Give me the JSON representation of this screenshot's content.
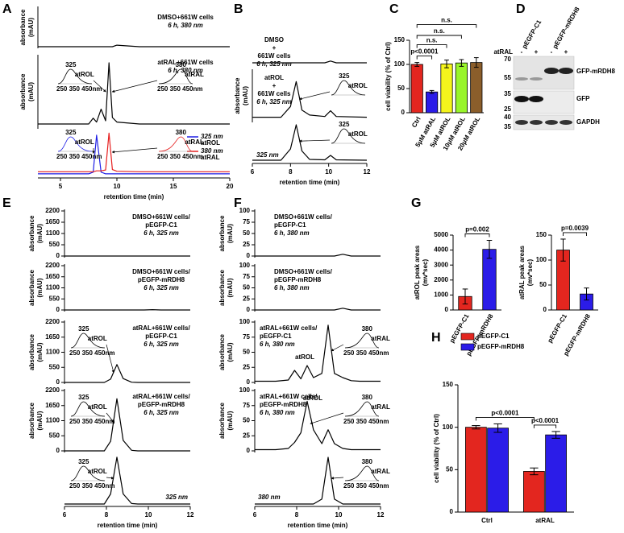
{
  "panels": [
    "A",
    "B",
    "C",
    "D",
    "E",
    "F",
    "G",
    "H"
  ],
  "chart_data": [
    {
      "type": "line",
      "y_label": [
        "absorbance",
        "(mAU)"
      ],
      "labels": [
        "DMSO+661W cells"
      ],
      "method": "6 h, 380 nm",
      "x": [
        3,
        5,
        7.5,
        7.9,
        8.2,
        8.6,
        9,
        9.3,
        9.6,
        10,
        12,
        15,
        20
      ],
      "series": [
        {
          "color": "#000000",
          "values": [
            0,
            0,
            0,
            0,
            0,
            0,
            0,
            0,
            0,
            4,
            0,
            0,
            0
          ]
        }
      ],
      "xlim": [
        3,
        20
      ],
      "ylim": [
        0,
        100
      ]
    },
    {
      "type": "line",
      "y_label": [
        "absorbance",
        "(mAU)"
      ],
      "labels": [
        "atRAL+661W cells"
      ],
      "method": "6 h, 380 nm",
      "insets": [
        {
          "peak": "325",
          "compound": "atROL",
          "axis": "250 350 450nm"
        },
        {
          "peak": "380",
          "compound": "atRAL",
          "axis": "250 350 450nm"
        }
      ],
      "x": [
        3,
        5,
        7.5,
        7.9,
        8.2,
        8.6,
        9,
        9.3,
        9.6,
        10,
        12,
        15,
        20
      ],
      "series": [
        {
          "color": "#000000",
          "values": [
            5,
            5,
            5,
            14,
            8,
            28,
            10,
            100,
            15,
            8,
            5,
            5,
            5
          ]
        }
      ],
      "xlim": [
        3,
        20
      ],
      "ylim": [
        0,
        110
      ]
    },
    {
      "type": "line",
      "insets": [
        {
          "peak": "325",
          "compound": "atROL",
          "axis": "250 350 450nm",
          "color": "#1f1fe6"
        },
        {
          "peak": "380",
          "compound": "atRAL",
          "axis": "250 350 450nm",
          "color": "#e61f1f"
        }
      ],
      "x": [
        3,
        5,
        7.5,
        7.9,
        8.2,
        8.6,
        9,
        9.3,
        9.6,
        10,
        12,
        15,
        20
      ],
      "series": [
        {
          "name": "325 nm",
          "note": "atROL",
          "color": "#1f1fe6",
          "values": [
            4,
            4,
            4,
            8,
            95,
            8,
            4,
            4,
            4,
            4,
            4,
            4,
            4
          ]
        },
        {
          "name": "380 nm",
          "note": "atRAL",
          "color": "#e61f1f",
          "values": [
            9,
            9,
            9,
            9,
            11,
            11,
            13,
            100,
            14,
            10,
            9,
            9,
            9
          ]
        }
      ],
      "xlim": [
        3,
        20
      ],
      "ylim": [
        0,
        110
      ],
      "xticks": [
        5,
        10,
        15,
        20
      ],
      "x_label": "retention time (min)"
    },
    {
      "type": "line",
      "labels": [
        "DMSO",
        "+",
        "661W cells"
      ],
      "method": "6 h, 325 nm",
      "x": [
        6,
        7.5,
        8,
        8.3,
        8.6,
        9,
        9.8,
        10.1,
        10.4,
        12
      ],
      "series": [
        {
          "color": "#000000",
          "values": [
            0,
            0,
            0,
            0,
            0,
            0,
            0,
            6,
            0,
            0
          ]
        }
      ],
      "xlim": [
        6,
        12
      ],
      "ylim": [
        0,
        100
      ]
    },
    {
      "type": "line",
      "y_label": [
        "absorbance",
        "(mAU)"
      ],
      "labels": [
        "atROL",
        "+",
        "661W cells"
      ],
      "method": "6 h, 325 nm",
      "insets": [
        {
          "peak": "325",
          "compound": "atROL"
        }
      ],
      "x": [
        6,
        7.5,
        8,
        8.3,
        8.6,
        9,
        9.8,
        10.1,
        10.4,
        12
      ],
      "series": [
        {
          "color": "#000000",
          "values": [
            5,
            5,
            20,
            55,
            15,
            8,
            6,
            14,
            6,
            5
          ]
        }
      ],
      "xlim": [
        6,
        12
      ],
      "ylim": [
        0,
        70
      ]
    },
    {
      "type": "line",
      "wavelength": "325 nm",
      "insets": [
        {
          "peak": "325",
          "compound": "atROL"
        }
      ],
      "x": [
        6,
        7.5,
        8,
        8.3,
        8.6,
        9,
        9.8,
        10.1,
        10.4,
        12
      ],
      "series": [
        {
          "color": "#000000",
          "values": [
            2,
            2,
            30,
            90,
            25,
            4,
            3,
            14,
            3,
            2
          ]
        }
      ],
      "xlim": [
        6,
        12
      ],
      "ylim": [
        0,
        100
      ],
      "xticks": [
        6,
        8,
        10,
        12
      ],
      "x_label": "retention time (min)"
    },
    {
      "type": "bar",
      "y_label": [
        "cell viability (% of Ctrl)"
      ],
      "categories": [
        "Ctrl",
        "5μM atRAL",
        "5μM atROL",
        "10μM atROL",
        "20μM atROL"
      ],
      "values": [
        100,
        43,
        101,
        103,
        104
      ],
      "errors": [
        4,
        3,
        8,
        7,
        10
      ],
      "colors": [
        "#e3261f",
        "#2b1ce8",
        "#f5f51c",
        "#99f52a",
        "#8b5e2b"
      ],
      "ylim": [
        0,
        150
      ],
      "yticks": [
        0,
        50,
        100,
        150
      ],
      "significance": [
        {
          "label": "p<0.0001",
          "between": [
            0,
            1
          ]
        },
        {
          "label": "n.s.",
          "between": [
            0,
            2
          ]
        },
        {
          "label": "n.s.",
          "between": [
            0,
            3
          ]
        },
        {
          "label": "n.s.",
          "between": [
            0,
            4
          ]
        }
      ]
    },
    {
      "type": "line",
      "y_label": [
        "absorbance",
        "(mAU)"
      ],
      "labels": [
        "DMSO+661W cells/",
        "pEGFP-C1"
      ],
      "method": "6 h, 325 nm",
      "x": [
        6,
        7,
        7.6,
        7.9,
        8.2,
        8.5,
        8.8,
        9.2,
        9.5,
        9.8,
        10.2,
        10.6,
        11,
        12
      ],
      "series": [
        {
          "color": "#000000",
          "values": [
            0,
            0,
            0,
            0,
            0,
            0,
            0,
            0,
            0,
            0,
            0,
            0,
            0,
            0
          ]
        }
      ],
      "xlim": [
        6,
        12
      ],
      "ylim": [
        0,
        2200
      ],
      "yticks": [
        0,
        550,
        1100,
        1650,
        2200
      ]
    },
    {
      "type": "line",
      "y_label": [
        "absorbance",
        "(mAU)"
      ],
      "labels": [
        "DMSO+661W cells/",
        "pEGFP-mRDH8"
      ],
      "method": "6 h, 325 nm",
      "x": [
        6,
        7,
        7.6,
        7.9,
        8.2,
        8.5,
        8.8,
        9.2,
        9.5,
        9.8,
        10.2,
        10.6,
        11,
        12
      ],
      "series": [
        {
          "color": "#000000",
          "values": [
            0,
            0,
            0,
            0,
            0,
            0,
            0,
            0,
            0,
            0,
            15,
            0,
            0,
            0
          ]
        }
      ],
      "xlim": [
        6,
        12
      ],
      "ylim": [
        0,
        2200
      ],
      "yticks": [
        0,
        550,
        1100,
        1650,
        2200
      ]
    },
    {
      "type": "line",
      "y_label": [
        "absorbance",
        "(mAU)"
      ],
      "labels": [
        "atRAL+661W cells/",
        "pEGFP-C1"
      ],
      "method": "6 h, 325 nm",
      "insets": [
        {
          "peak": "325",
          "compound": "atROL",
          "axis": "250 350 450nm"
        }
      ],
      "x": [
        6,
        7,
        7.6,
        7.9,
        8.2,
        8.5,
        8.8,
        9.2,
        9.5,
        9.8,
        10.2,
        10.6,
        11,
        12
      ],
      "series": [
        {
          "color": "#000000",
          "values": [
            0,
            0,
            0,
            0,
            120,
            650,
            140,
            10,
            0,
            0,
            0,
            0,
            0,
            0
          ]
        }
      ],
      "xlim": [
        6,
        12
      ],
      "ylim": [
        0,
        2200
      ],
      "yticks": [
        0,
        550,
        1100,
        1650,
        2200
      ]
    },
    {
      "type": "line",
      "y_label": [
        "absorbance",
        "(mAU)"
      ],
      "labels": [
        "atRAL+661W cells/",
        "pEGFP-mRDH8"
      ],
      "method": "6 h, 325 nm",
      "insets": [
        {
          "peak": "325",
          "compound": "atROL",
          "axis": "250 350 450nm"
        }
      ],
      "x": [
        6,
        7,
        7.6,
        7.9,
        8.2,
        8.5,
        8.8,
        9.2,
        9.5,
        9.8,
        10.2,
        10.6,
        11,
        12
      ],
      "series": [
        {
          "color": "#000000",
          "values": [
            0,
            0,
            0,
            0,
            350,
            1900,
            380,
            20,
            0,
            0,
            0,
            0,
            0,
            0
          ]
        }
      ],
      "xlim": [
        6,
        12
      ],
      "ylim": [
        0,
        2200
      ],
      "yticks": [
        0,
        550,
        1100,
        1650,
        2200
      ]
    },
    {
      "type": "line",
      "wavelength": "325 nm",
      "insets": [
        {
          "peak": "325",
          "compound": "atROL",
          "axis": "250 350 450nm"
        }
      ],
      "x": [
        6,
        7,
        7.6,
        7.9,
        8.2,
        8.5,
        8.8,
        9.2,
        9.5,
        9.8,
        10.2,
        10.6,
        11,
        12
      ],
      "series": [
        {
          "color": "#000000",
          "values": [
            0,
            0,
            0,
            0,
            450,
            2100,
            450,
            20,
            0,
            0,
            0,
            0,
            0,
            0
          ]
        }
      ],
      "xlim": [
        6,
        12
      ],
      "ylim": [
        0,
        2200
      ],
      "xticks": [
        6,
        8,
        10,
        12
      ],
      "x_label": "retention time (min)"
    },
    {
      "type": "line",
      "y_label": [
        "absorbance",
        "(mAU)"
      ],
      "labels": [
        "DMSO+661W cells/",
        "pEGFP-C1"
      ],
      "method": "6 h, 380 nm",
      "x": [
        6,
        7,
        7.6,
        7.9,
        8.2,
        8.5,
        8.8,
        9.2,
        9.5,
        9.8,
        10.2,
        10.6,
        11,
        12
      ],
      "series": [
        {
          "color": "#000000",
          "values": [
            0,
            0,
            0,
            0,
            0,
            0,
            0,
            0,
            0,
            0,
            4,
            0,
            0,
            0
          ]
        }
      ],
      "xlim": [
        6,
        12
      ],
      "ylim": [
        0,
        100
      ],
      "yticks": [
        0,
        25,
        50,
        75,
        100
      ]
    },
    {
      "type": "line",
      "y_label": [
        "absorbance",
        "(mAU)"
      ],
      "labels": [
        "DMSO+661W cells/",
        "pEGFP-mRDH8"
      ],
      "method": "6 h, 380 nm",
      "x": [
        6,
        7,
        7.6,
        7.9,
        8.2,
        8.5,
        8.8,
        9.2,
        9.5,
        9.8,
        10.2,
        10.6,
        11,
        12
      ],
      "series": [
        {
          "color": "#000000",
          "values": [
            0,
            0,
            0,
            0,
            0,
            0,
            0,
            0,
            0,
            0,
            4,
            0,
            0,
            0
          ]
        }
      ],
      "xlim": [
        6,
        12
      ],
      "ylim": [
        0,
        100
      ],
      "yticks": [
        0,
        25,
        50,
        75,
        100
      ]
    },
    {
      "type": "line",
      "y_label": [
        "absorbance",
        "(mAU)"
      ],
      "labels": [
        "atRAL+661W cells/",
        "pEGFP-C1"
      ],
      "method": "6 h, 380 nm",
      "peak_label": "atROL",
      "insets": [
        {
          "peak": "380",
          "compound": "atRAL",
          "axis": "250 350 450nm"
        }
      ],
      "x": [
        6,
        7,
        7.6,
        7.9,
        8.2,
        8.5,
        8.8,
        9.2,
        9.5,
        9.8,
        10.2,
        10.6,
        11,
        12
      ],
      "series": [
        {
          "color": "#000000",
          "values": [
            2,
            2,
            4,
            20,
            6,
            28,
            8,
            15,
            95,
            15,
            8,
            3,
            2,
            2
          ]
        }
      ],
      "xlim": [
        6,
        12
      ],
      "ylim": [
        0,
        100
      ],
      "yticks": [
        0,
        25,
        50,
        75,
        100
      ]
    },
    {
      "type": "line",
      "y_label": [
        "absorbance",
        "(mAU)"
      ],
      "labels": [
        "atRAL+661W cells/",
        "pEGFP-mRDH8"
      ],
      "method": "6 h, 380 nm",
      "peak_label": "atROL",
      "insets": [
        {
          "peak": "380",
          "compound": "atRAL",
          "axis": "250 350 450nm"
        }
      ],
      "x": [
        6,
        7,
        7.6,
        7.9,
        8.2,
        8.5,
        8.8,
        9.2,
        9.5,
        9.8,
        10.2,
        10.6,
        11,
        12
      ],
      "series": [
        {
          "color": "#000000",
          "values": [
            2,
            2,
            4,
            14,
            30,
            82,
            35,
            12,
            35,
            12,
            4,
            2,
            2,
            2
          ]
        }
      ],
      "xlim": [
        6,
        12
      ],
      "ylim": [
        0,
        100
      ],
      "yticks": [
        0,
        25,
        50,
        75,
        100
      ]
    },
    {
      "type": "line",
      "wavelength": "380 nm",
      "insets": [
        {
          "peak": "380",
          "compound": "atRAL",
          "axis": "250 350 450nm"
        }
      ],
      "x": [
        6,
        7,
        7.6,
        7.9,
        8.2,
        8.5,
        8.8,
        9.2,
        9.5,
        9.8,
        10.2,
        10.6,
        11,
        12
      ],
      "series": [
        {
          "color": "#000000",
          "values": [
            0,
            0,
            0,
            0,
            0,
            0,
            0,
            10,
            95,
            10,
            0,
            0,
            0,
            0
          ]
        }
      ],
      "xlim": [
        6,
        12
      ],
      "ylim": [
        0,
        100
      ],
      "xticks": [
        6,
        8,
        10,
        12
      ],
      "x_label": "retention time (min)"
    },
    {
      "type": "bar",
      "y_label": [
        "atROL peak areas",
        "(mv*sec)"
      ],
      "categories": [
        "pEGFP-C1",
        "pEGFP-mRDH8"
      ],
      "values": [
        900,
        4050
      ],
      "errors": [
        500,
        600
      ],
      "colors": [
        "#e3261f",
        "#2b1ce8"
      ],
      "ylim": [
        0,
        5000
      ],
      "yticks": [
        0,
        1000,
        2000,
        3000,
        4000,
        5000
      ],
      "significance": [
        {
          "label": "p=0.002",
          "between": [
            0,
            1
          ]
        }
      ]
    },
    {
      "type": "bar",
      "y_label": [
        "atRAL peak areas",
        "(mv*sec)"
      ],
      "categories": [
        "pEGFP-C1",
        "pEGFP-mRDH8"
      ],
      "values": [
        120,
        32
      ],
      "errors": [
        22,
        12
      ],
      "colors": [
        "#e3261f",
        "#2b1ce8"
      ],
      "ylim": [
        0,
        150
      ],
      "yticks": [
        0,
        50,
        100,
        150
      ],
      "significance": [
        {
          "label": "p=0.0039",
          "between": [
            0,
            1
          ]
        }
      ]
    },
    {
      "type": "bar",
      "y_label": [
        "cell viability (% of Ctrl)"
      ],
      "categories": [
        "Ctrl",
        "atRAL"
      ],
      "series": [
        {
          "name": "pEGFP-C1",
          "color": "#e3261f",
          "values": [
            100,
            48
          ],
          "errors": [
            2,
            4
          ]
        },
        {
          "name": "pEGFP-mRDH8",
          "color": "#2b1ce8",
          "values": [
            99,
            91
          ],
          "errors": [
            5,
            4
          ]
        }
      ],
      "ylim": [
        0,
        150
      ],
      "yticks": [
        0,
        50,
        100,
        150
      ],
      "significance": [
        {
          "label": "p<0.0001",
          "between": [
            0,
            2
          ]
        },
        {
          "label": "p<0.0001",
          "between": [
            2,
            3
          ]
        }
      ]
    }
  ],
  "blot": {
    "lanes": [
      "pEGFP-C1",
      "pEGFP-mRDH8"
    ],
    "treatment": "atRAL",
    "signs": [
      "-",
      "+",
      "-",
      "+"
    ],
    "markers": [
      "70",
      "55",
      "35",
      "25",
      "40",
      "35"
    ],
    "proteins": [
      "GFP-mRDH8",
      "GFP",
      "GAPDH"
    ]
  }
}
